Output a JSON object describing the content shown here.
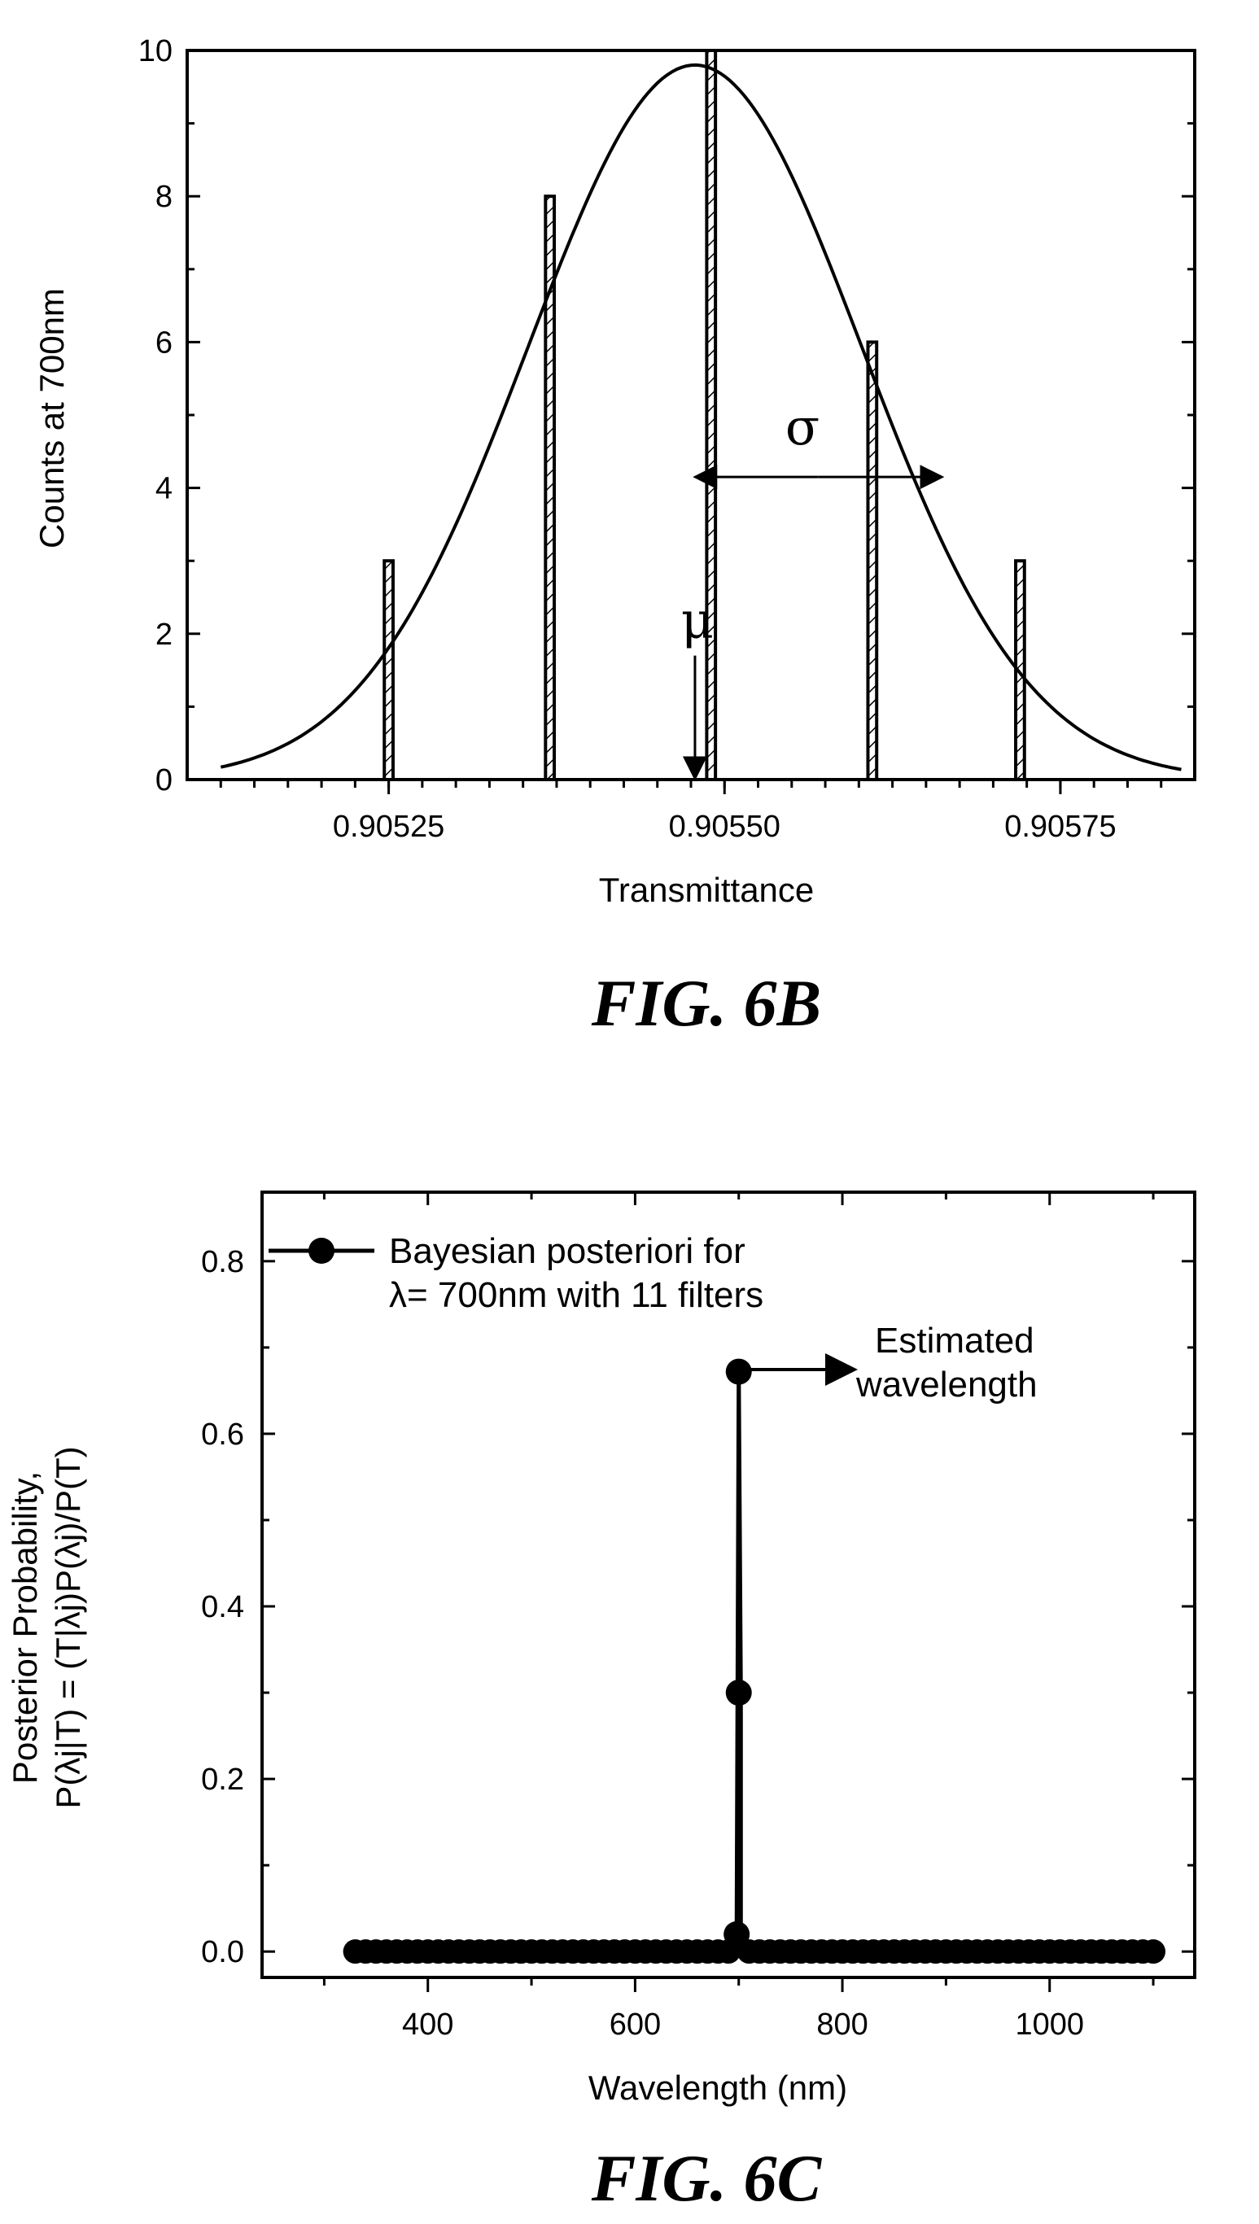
{
  "chart_data": [
    {
      "type": "bar",
      "figure_label": "FIG. 6B",
      "title": "",
      "xlabel": "Transmittance",
      "ylabel": "Counts at 700nm",
      "xlim": [
        0.9051,
        0.90585
      ],
      "ylim": [
        0,
        10
      ],
      "xticks": [
        "0.90525",
        "0.90550",
        "0.90575"
      ],
      "yticks": [
        "0",
        "2",
        "4",
        "6",
        "8",
        "10"
      ],
      "bars": [
        {
          "x": 0.90525,
          "value": 3
        },
        {
          "x": 0.90537,
          "value": 8
        },
        {
          "x": 0.90549,
          "value": 10
        },
        {
          "x": 0.90561,
          "value": 6
        },
        {
          "x": 0.90572,
          "value": 3
        }
      ],
      "bar_width": 6.5e-06,
      "fit_curve": {
        "type": "gaussian",
        "amplitude": 9.8,
        "mu": 0.905478,
        "sigma": 0.000124
      },
      "annotations": {
        "mu": "μ",
        "sigma": "σ",
        "mu_x": 0.905478,
        "sigma_x_range": [
          0.90548,
          0.90566
        ],
        "sigma_y": 4.15
      }
    },
    {
      "type": "scatter",
      "figure_label": "FIG. 6C",
      "title": "",
      "xlabel": "Wavelength (nm)",
      "ylabel_line1": "Posterior Probability,",
      "ylabel_line2": "P(λj|T) = (T|λj)P(λj)/P(T)",
      "xlim": [
        240,
        1140
      ],
      "ylim": [
        -0.03,
        0.88
      ],
      "xticks": [
        "400",
        "600",
        "800",
        "1000"
      ],
      "yticks": [
        "0.0",
        "0.2",
        "0.4",
        "0.6",
        "0.8"
      ],
      "legend": {
        "placement": "top-left",
        "line1": "Bayesian posteriori for",
        "line2": "λ= 700nm with 11 filters"
      },
      "series": [
        {
          "name": "Bayesian posteriori for λ= 700nm with 11 filters",
          "x_range": [
            330,
            1100
          ],
          "x_step": 10,
          "baseline": 0.0,
          "peaks": [
            {
              "x": 698,
              "y": 0.02
            },
            {
              "x": 700,
              "y": 0.3
            },
            {
              "x": 700,
              "y": 0.672
            }
          ]
        }
      ],
      "annotations": {
        "estimated_line1": "Estimated",
        "estimated_line2": "wavelength"
      }
    }
  ]
}
